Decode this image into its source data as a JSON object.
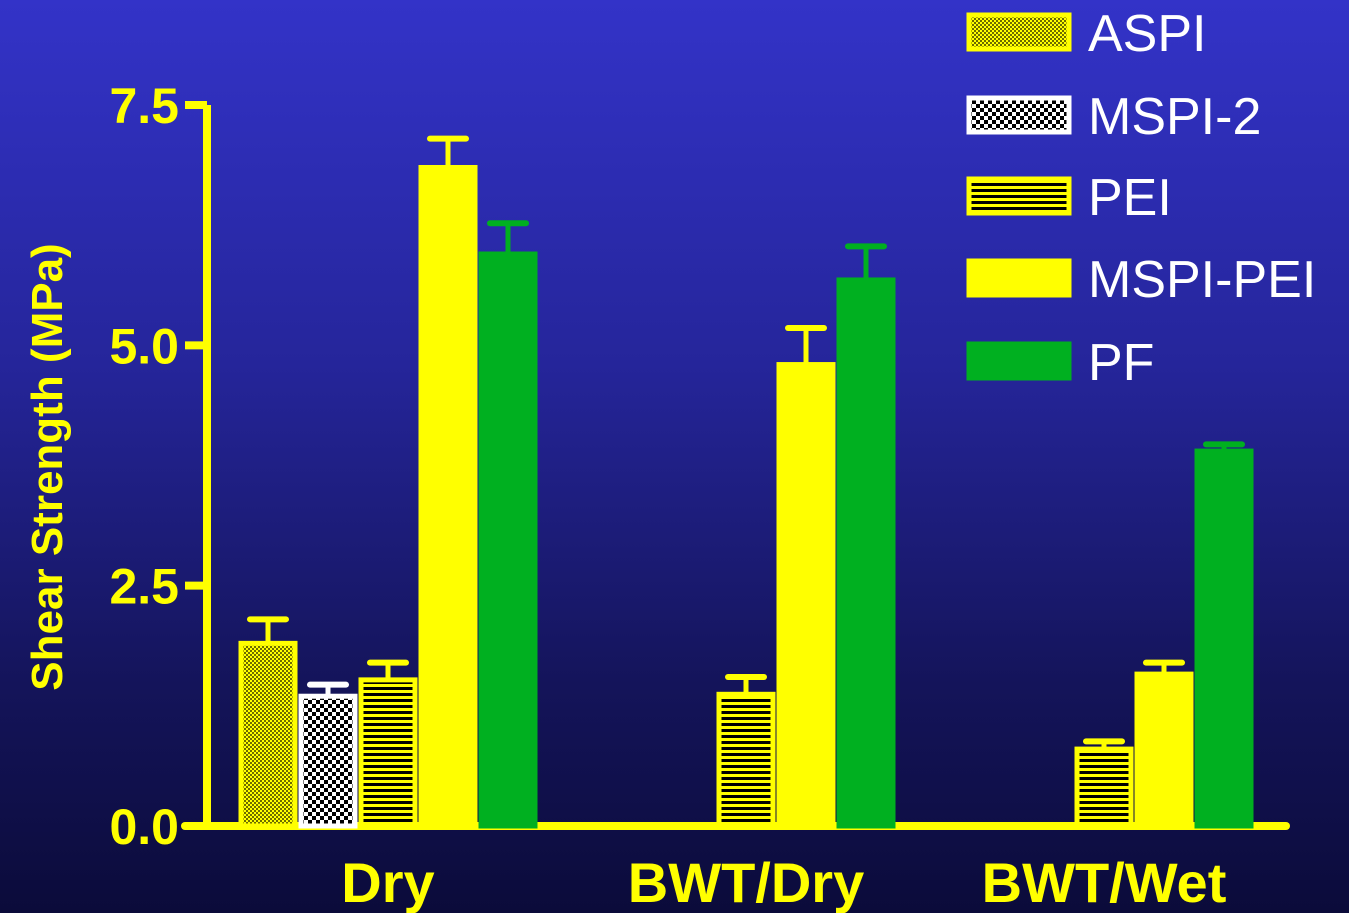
{
  "chart_data": {
    "type": "bar",
    "title": "",
    "xlabel": "",
    "ylabel": "Shear Strength (MPa)",
    "ylim": [
      0,
      7.5
    ],
    "yticks": [
      "0.0",
      "2.5",
      "5.0",
      "7.5"
    ],
    "categories": [
      "Dry",
      "BWT/Dry",
      "BWT/Wet"
    ],
    "legend_position": "top-right",
    "grid": false,
    "series": [
      {
        "name": "ASPI",
        "values": [
          1.9,
          null,
          null
        ],
        "errors": [
          0.25,
          null,
          null
        ],
        "color": "#ffff00",
        "pattern": "fine-dots"
      },
      {
        "name": "MSPI-2",
        "values": [
          1.35,
          null,
          null
        ],
        "errors": [
          0.12,
          null,
          null
        ],
        "color": "#ffffff",
        "pattern": "checker"
      },
      {
        "name": "PEI",
        "values": [
          1.52,
          1.37,
          0.8
        ],
        "errors": [
          0.18,
          0.18,
          0.08
        ],
        "color": "#ffff00",
        "pattern": "horizontal-stripes"
      },
      {
        "name": "MSPI-PEI",
        "values": [
          6.85,
          4.8,
          1.58
        ],
        "errors": [
          0.3,
          0.38,
          0.12
        ],
        "color": "#ffff00",
        "pattern": "solid"
      },
      {
        "name": "PF",
        "values": [
          5.95,
          5.68,
          3.9
        ],
        "errors": [
          0.32,
          0.35,
          0.07
        ],
        "color": "#00b020",
        "pattern": "solid"
      }
    ]
  }
}
